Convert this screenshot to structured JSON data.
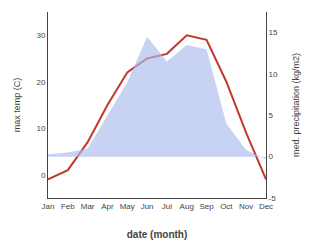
{
  "chart_data": {
    "type": "line",
    "xlabel": "date (month)",
    "ylabel": "max temp (C)",
    "y2label": "med. precipitation (kg/m2)",
    "categories": [
      "Jan",
      "Feb",
      "Mar",
      "Apr",
      "May",
      "Jun",
      "Jul",
      "Aug",
      "Sep",
      "Oct",
      "Nov",
      "Dec"
    ],
    "series": [
      {
        "type": "area",
        "axis": "y2",
        "color": "#aabbee",
        "values": [
          0.3,
          0.5,
          1.0,
          5.0,
          9.0,
          14.5,
          11.5,
          13.5,
          13.0,
          4.0,
          0.8,
          -0.3
        ]
      },
      {
        "type": "line",
        "color": "#c0392b",
        "values": [
          -1,
          1,
          7,
          15,
          22,
          25,
          26,
          30,
          29,
          20,
          9,
          -1
        ]
      }
    ],
    "ylim": [
      -5,
      35
    ],
    "yticks": [
      0,
      10,
      20,
      30
    ],
    "y2lim": [
      -5,
      17.5
    ],
    "y2ticks": [
      -5,
      0,
      5,
      10,
      15
    ],
    "grid": false
  }
}
